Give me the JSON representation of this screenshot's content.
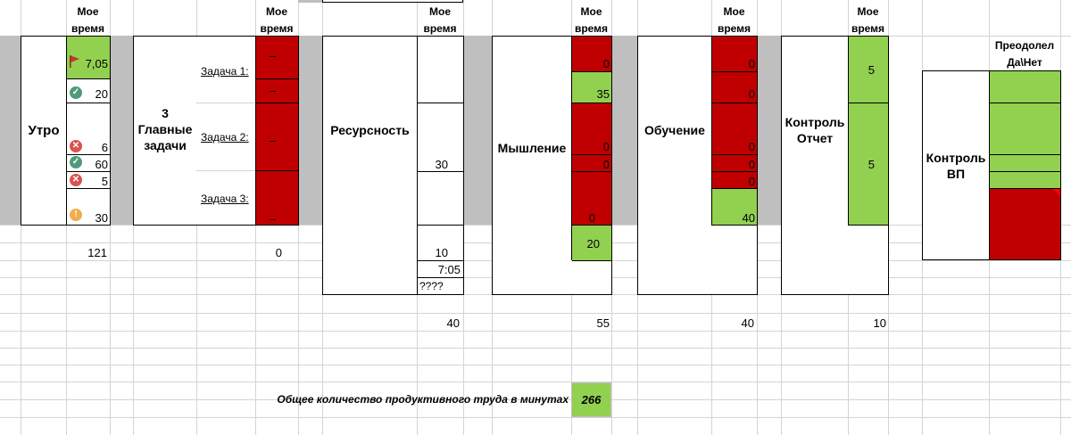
{
  "header_label": "Мое время",
  "morning": {
    "title": "Утро",
    "values": [
      "7,05",
      "20",
      "6",
      "60",
      "5",
      "30"
    ],
    "total": "121"
  },
  "main_tasks": {
    "title": "3 Главные задачи",
    "tasks": [
      "Задача 1:",
      "Задача 2:",
      "Задача 3:"
    ],
    "marks": [
      "–",
      "–",
      "–",
      "–"
    ],
    "total": "0"
  },
  "resource": {
    "title": "Ресурсность",
    "values": [
      "30",
      "10",
      "7:05",
      "????"
    ],
    "total": "40"
  },
  "thinking": {
    "title": "Мышление",
    "values": [
      "0",
      "35",
      "0",
      "0",
      "0",
      "20"
    ],
    "total": "55"
  },
  "learning": {
    "title": "Обучение",
    "values": [
      "0",
      "0",
      "0",
      "0",
      "0",
      "40"
    ],
    "total": "40"
  },
  "control": {
    "title": "Контроль Отчет",
    "values": [
      "5",
      "5"
    ],
    "total": "10"
  },
  "vp": {
    "title": "Контроль ВП",
    "header": "Преодолел Да\\Нет"
  },
  "summary": {
    "label": "Общее количество продуктивного труда в минутах",
    "value": "266"
  },
  "colors": {
    "red": "#c00000",
    "green": "#92d050",
    "band": "#bfbfbf"
  },
  "icons": [
    "flag-icon",
    "check-icon",
    "cross-icon",
    "check-icon",
    "cross-icon",
    "exclamation-icon"
  ]
}
